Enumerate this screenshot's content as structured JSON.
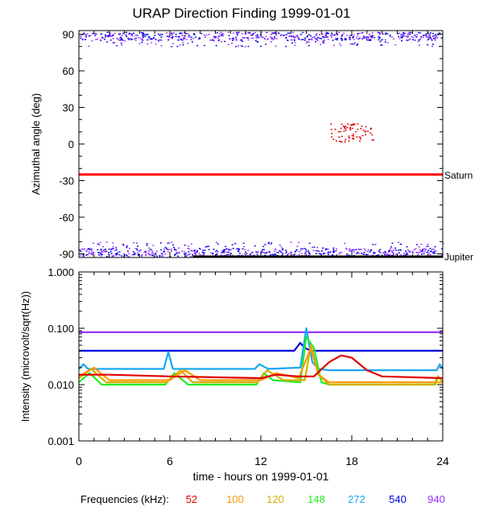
{
  "title": "URAP Direction Finding  1999-01-01",
  "xlabel": "time - hours on 1999-01-01",
  "freq_legend": {
    "label": "Frequencies (kHz):",
    "items": [
      {
        "text": "52",
        "color": "#e00000"
      },
      {
        "text": "100",
        "color": "#ff9900"
      },
      {
        "text": "120",
        "color": "#d4b000"
      },
      {
        "text": "148",
        "color": "#22ee22"
      },
      {
        "text": "272",
        "color": "#18a8f0"
      },
      {
        "text": "540",
        "color": "#0000e0"
      },
      {
        "text": "940",
        "color": "#9933ff"
      }
    ]
  },
  "chart_data": [
    {
      "type": "scatter",
      "ylabel": "Azimuthal angle (deg)",
      "xlim": [
        0,
        24
      ],
      "ylim": [
        -93,
        93
      ],
      "xticks": [
        "0",
        "6",
        "12",
        "18",
        "24"
      ],
      "yticks": [
        {
          "value": 90,
          "label": "90"
        },
        {
          "value": 60,
          "label": "60"
        },
        {
          "value": 30,
          "label": "30"
        },
        {
          "value": 0,
          "label": "0"
        },
        {
          "value": -30,
          "label": "-30"
        },
        {
          "value": -60,
          "label": "-60"
        },
        {
          "value": -90,
          "label": "-90"
        }
      ],
      "reference_lines": [
        {
          "label": "Saturn",
          "y": -25,
          "color": "#ff0000"
        },
        {
          "label": "Jupiter",
          "y": -92,
          "x_start": 7.5,
          "color": "#000000"
        }
      ],
      "scatter_bands": [
        {
          "x": [
            0,
            24
          ],
          "y": [
            80,
            92
          ],
          "note_colors": [
            "#9933ff",
            "#0000e0"
          ]
        },
        {
          "x": [
            0,
            24
          ],
          "y": [
            -92,
            -80
          ],
          "note_colors": [
            "#9933ff",
            "#0000e0"
          ]
        },
        {
          "x": [
            16.5,
            19.5
          ],
          "y": [
            2,
            17
          ],
          "note_colors": [
            "#e00000"
          ]
        }
      ]
    },
    {
      "type": "line",
      "ylabel": "Intensity (microvolt/sqrt(Hz))",
      "xlim": [
        0,
        24
      ],
      "ylim": [
        0.001,
        1.0
      ],
      "log_scale": true,
      "xticks": [
        "0",
        "6",
        "12",
        "18",
        "24"
      ],
      "yticks": [
        {
          "value": 1.0,
          "label": "1.000"
        },
        {
          "value": 0.1,
          "label": "0.100"
        },
        {
          "value": 0.01,
          "label": "0.010"
        },
        {
          "value": 0.001,
          "label": "0.001"
        }
      ],
      "series": [
        {
          "name": "940",
          "color": "#9933ff",
          "x": [
            0,
            24
          ],
          "y": [
            0.085,
            0.085
          ]
        },
        {
          "name": "540",
          "color": "#0000e0",
          "x": [
            0,
            14.2,
            14.6,
            14.9,
            15.3,
            24
          ],
          "y": [
            0.04,
            0.04,
            0.055,
            0.045,
            0.04,
            0.04
          ]
        },
        {
          "name": "272",
          "color": "#18a8f0",
          "x": [
            0,
            0.3,
            0.6,
            5.6,
            5.9,
            6.2,
            11.6,
            11.9,
            12.5,
            14.6,
            15.0,
            15.4,
            15.8,
            16.5,
            23.6,
            23.8,
            24
          ],
          "y": [
            0.019,
            0.023,
            0.019,
            0.019,
            0.038,
            0.019,
            0.019,
            0.023,
            0.019,
            0.02,
            0.1,
            0.025,
            0.019,
            0.018,
            0.018,
            0.023,
            0.019
          ]
        },
        {
          "name": "148",
          "color": "#22ee22",
          "x": [
            0,
            0.7,
            1.5,
            2.5,
            5.7,
            6.3,
            7.2,
            11.7,
            12.2,
            12.8,
            14.6,
            15.0,
            15.5,
            16.0,
            16.5,
            17.5,
            23.5,
            23.7,
            24
          ],
          "y": [
            0.011,
            0.016,
            0.01,
            0.01,
            0.01,
            0.016,
            0.01,
            0.01,
            0.016,
            0.012,
            0.011,
            0.07,
            0.045,
            0.011,
            0.01,
            0.01,
            0.01,
            0.014,
            0.011
          ]
        },
        {
          "name": "120",
          "color": "#d4b000",
          "x": [
            0,
            0.8,
            1.8,
            5.8,
            6.7,
            7.5,
            11.8,
            12.4,
            13.5,
            14.9,
            15.3,
            15.8,
            16.5,
            23.4,
            23.7,
            24
          ],
          "y": [
            0.013,
            0.019,
            0.011,
            0.011,
            0.018,
            0.011,
            0.011,
            0.018,
            0.012,
            0.012,
            0.05,
            0.015,
            0.01,
            0.01,
            0.014,
            0.011
          ]
        },
        {
          "name": "100",
          "color": "#ff9900",
          "x": [
            0,
            1,
            2,
            6,
            7,
            8,
            12,
            13,
            14.5,
            15.3,
            15.8,
            16.5,
            24
          ],
          "y": [
            0.014,
            0.02,
            0.012,
            0.012,
            0.018,
            0.012,
            0.012,
            0.016,
            0.013,
            0.045,
            0.015,
            0.011,
            0.011
          ]
        },
        {
          "name": "52",
          "color": "#e00000",
          "x": [
            0,
            2,
            6,
            12,
            13,
            14.5,
            15.5,
            16.5,
            17.3,
            18.0,
            19.0,
            20.0,
            24
          ],
          "y": [
            0.015,
            0.015,
            0.014,
            0.013,
            0.015,
            0.014,
            0.014,
            0.025,
            0.033,
            0.03,
            0.018,
            0.014,
            0.013
          ]
        }
      ]
    }
  ]
}
